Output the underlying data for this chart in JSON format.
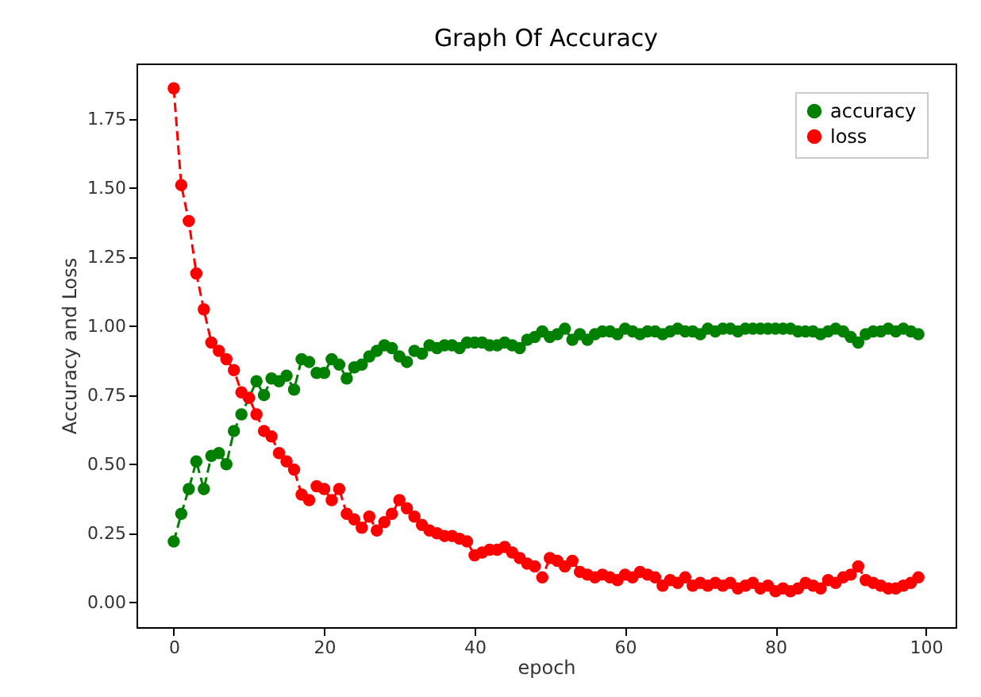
{
  "chart_data": {
    "type": "line",
    "title": "Graph Of Accuracy",
    "xlabel": "epoch",
    "ylabel": "Accuracy and Loss",
    "x": [
      0,
      1,
      2,
      3,
      4,
      5,
      6,
      7,
      8,
      9,
      10,
      11,
      12,
      13,
      14,
      15,
      16,
      17,
      18,
      19,
      20,
      21,
      22,
      23,
      24,
      25,
      26,
      27,
      28,
      29,
      30,
      31,
      32,
      33,
      34,
      35,
      36,
      37,
      38,
      39,
      40,
      41,
      42,
      43,
      44,
      45,
      46,
      47,
      48,
      49,
      50,
      51,
      52,
      53,
      54,
      55,
      56,
      57,
      58,
      59,
      60,
      61,
      62,
      63,
      64,
      65,
      66,
      67,
      68,
      69,
      70,
      71,
      72,
      73,
      74,
      75,
      76,
      77,
      78,
      79,
      80,
      81,
      82,
      83,
      84,
      85,
      86,
      87,
      88,
      89,
      90,
      91,
      92,
      93,
      94,
      95,
      96,
      97,
      98,
      99
    ],
    "series": [
      {
        "name": "accuracy",
        "color": "#008000",
        "values": [
          0.22,
          0.32,
          0.41,
          0.51,
          0.41,
          0.53,
          0.54,
          0.5,
          0.62,
          0.68,
          0.74,
          0.8,
          0.75,
          0.81,
          0.8,
          0.82,
          0.77,
          0.88,
          0.87,
          0.83,
          0.83,
          0.88,
          0.86,
          0.81,
          0.85,
          0.86,
          0.89,
          0.91,
          0.93,
          0.92,
          0.89,
          0.87,
          0.91,
          0.9,
          0.93,
          0.92,
          0.93,
          0.93,
          0.92,
          0.94,
          0.94,
          0.94,
          0.93,
          0.93,
          0.94,
          0.93,
          0.92,
          0.95,
          0.96,
          0.98,
          0.96,
          0.97,
          0.99,
          0.95,
          0.97,
          0.95,
          0.97,
          0.98,
          0.98,
          0.97,
          0.99,
          0.98,
          0.97,
          0.98,
          0.98,
          0.97,
          0.98,
          0.99,
          0.98,
          0.98,
          0.97,
          0.99,
          0.98,
          0.99,
          0.99,
          0.98,
          0.99,
          0.99,
          0.99,
          0.99,
          0.99,
          0.99,
          0.99,
          0.98,
          0.98,
          0.98,
          0.97,
          0.98,
          0.99,
          0.98,
          0.96,
          0.94,
          0.97,
          0.98,
          0.98,
          0.99,
          0.98,
          0.99,
          0.98,
          0.97
        ]
      },
      {
        "name": "loss",
        "color": "#ff0000",
        "values": [
          1.86,
          1.51,
          1.38,
          1.19,
          1.06,
          0.94,
          0.91,
          0.88,
          0.84,
          0.76,
          0.74,
          0.68,
          0.62,
          0.6,
          0.54,
          0.51,
          0.48,
          0.39,
          0.37,
          0.42,
          0.41,
          0.37,
          0.41,
          0.32,
          0.3,
          0.27,
          0.31,
          0.26,
          0.29,
          0.32,
          0.37,
          0.34,
          0.31,
          0.28,
          0.26,
          0.25,
          0.24,
          0.24,
          0.23,
          0.22,
          0.17,
          0.18,
          0.19,
          0.19,
          0.2,
          0.18,
          0.16,
          0.14,
          0.13,
          0.09,
          0.16,
          0.15,
          0.13,
          0.15,
          0.11,
          0.1,
          0.09,
          0.1,
          0.09,
          0.08,
          0.1,
          0.09,
          0.11,
          0.1,
          0.09,
          0.06,
          0.08,
          0.07,
          0.09,
          0.06,
          0.07,
          0.06,
          0.07,
          0.06,
          0.07,
          0.05,
          0.06,
          0.07,
          0.05,
          0.06,
          0.04,
          0.05,
          0.04,
          0.05,
          0.07,
          0.06,
          0.05,
          0.08,
          0.07,
          0.09,
          0.1,
          0.13,
          0.08,
          0.07,
          0.06,
          0.05,
          0.05,
          0.06,
          0.07,
          0.09
        ]
      }
    ],
    "xlim": [
      -4.95,
      103.95
    ],
    "xticks": [
      0,
      20,
      40,
      60,
      80,
      100
    ],
    "ylim": [
      -0.09,
      1.95
    ],
    "yticks": [
      {
        "value": 0,
        "label": "0.00"
      },
      {
        "value": 0.25,
        "label": "0.25"
      },
      {
        "value": 0.5,
        "label": "0.50"
      },
      {
        "value": 0.75,
        "label": "0.75"
      },
      {
        "value": 1,
        "label": "1.00"
      },
      {
        "value": 1.25,
        "label": "1.25"
      },
      {
        "value": 1.5,
        "label": "1.50"
      },
      {
        "value": 1.75,
        "label": "1.75"
      }
    ],
    "grid": false,
    "legend": "top right",
    "marker": "circle",
    "line_style": "dashed"
  }
}
